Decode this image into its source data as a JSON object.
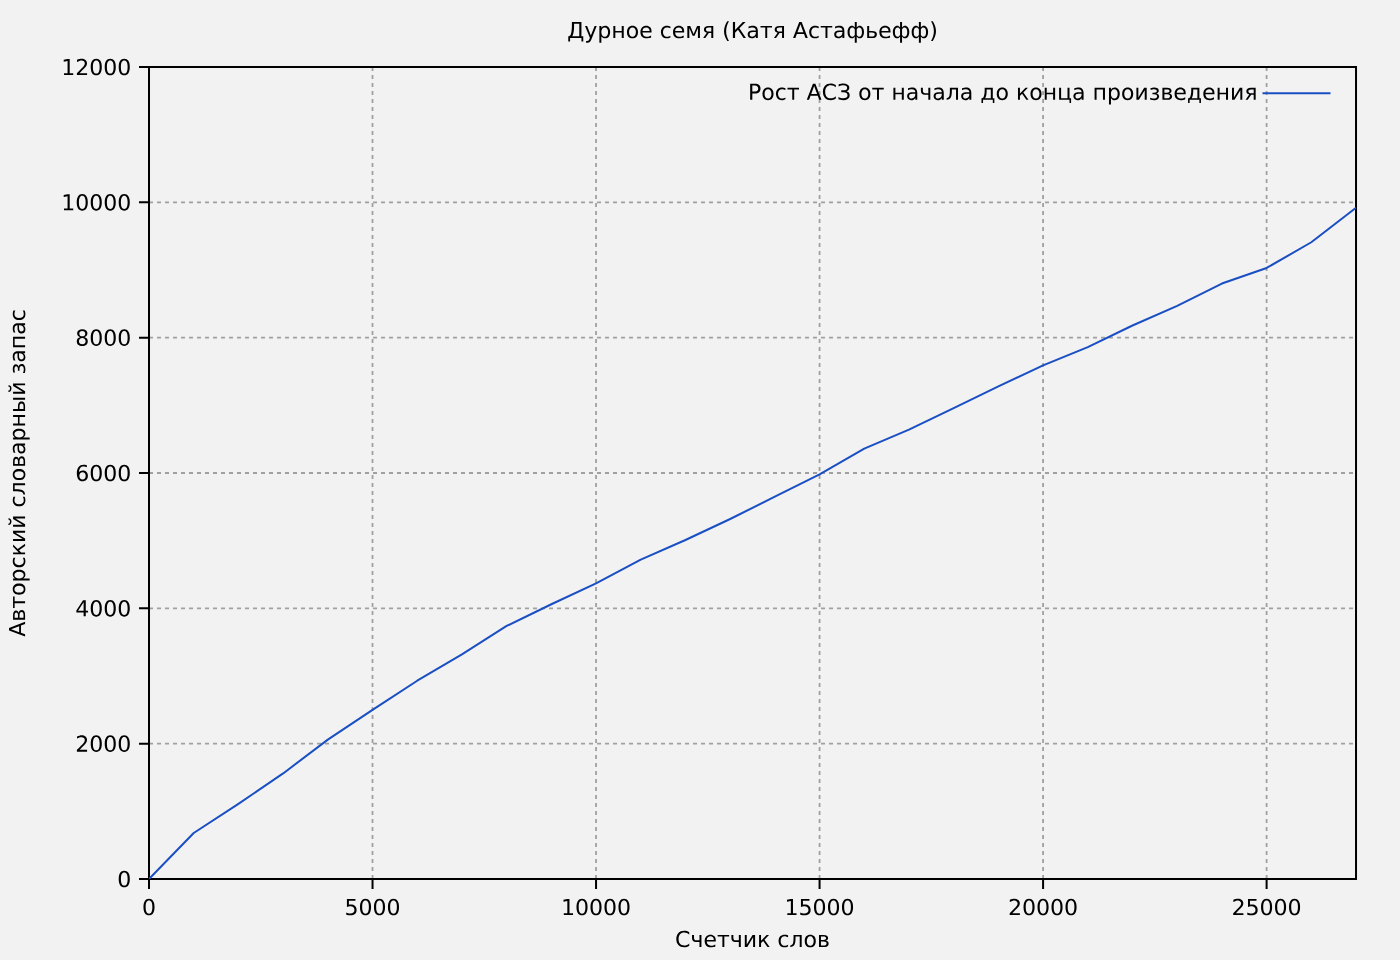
{
  "chart_data": {
    "type": "line",
    "title": "Дурное семя (Катя Астафьефф)",
    "xlabel": "Счетчик слов",
    "ylabel": "Авторский словарный запас",
    "x": [
      0,
      1000,
      2000,
      3000,
      4000,
      5000,
      6000,
      7000,
      8000,
      9000,
      10000,
      11000,
      12000,
      13000,
      14000,
      15000,
      16000,
      17000,
      18000,
      19000,
      20000,
      21000,
      22000,
      23000,
      24000,
      25000,
      26000,
      27000
    ],
    "series": [
      {
        "name": "Рост АСЗ от начала до конца произведения",
        "color": "#1a4fc4",
        "values": [
          0,
          680,
          1110,
          1560,
          2060,
          2500,
          2930,
          3320,
          3740,
          4060,
          4370,
          4720,
          5010,
          5320,
          5650,
          5980,
          6360,
          6640,
          6960,
          7280,
          7590,
          7860,
          8180,
          8470,
          8800,
          9030,
          9410,
          9920
        ]
      }
    ],
    "xlim": [
      0,
      27000
    ],
    "ylim": [
      0,
      12000
    ],
    "xticks": [
      0,
      5000,
      10000,
      15000,
      20000,
      25000
    ],
    "yticks": [
      0,
      2000,
      4000,
      6000,
      8000,
      10000,
      12000
    ],
    "grid": true,
    "legend": "top right",
    "line_style": "solid"
  }
}
